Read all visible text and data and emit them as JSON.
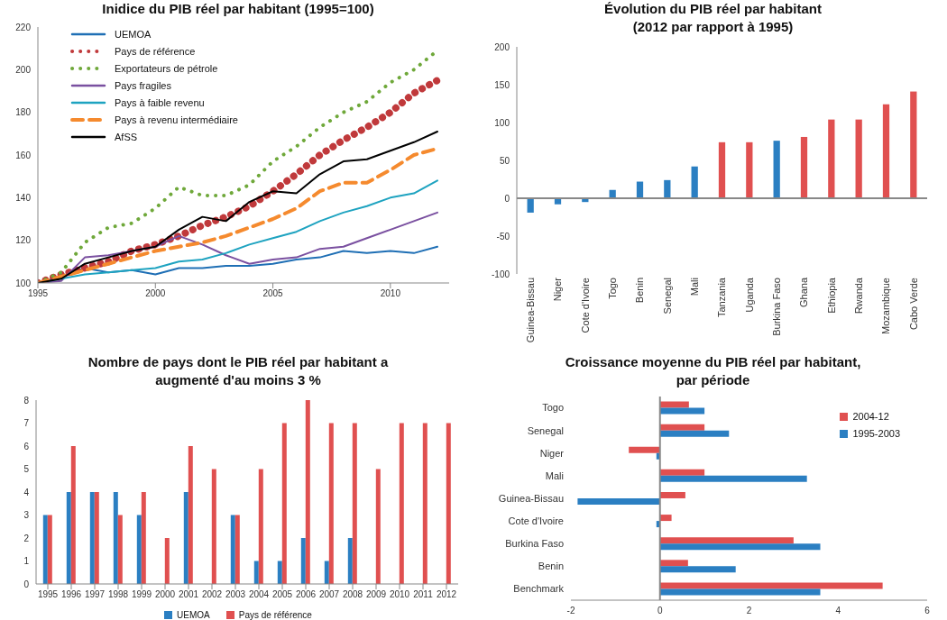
{
  "chart_data": [
    {
      "type": "line",
      "title": "Inidice du PIB réel par habitant  (1995=100)",
      "x": [
        1995,
        1996,
        1997,
        1998,
        1999,
        2000,
        2001,
        2002,
        2003,
        2004,
        2005,
        2006,
        2007,
        2008,
        2009,
        2010,
        2011,
        2012
      ],
      "xlim": [
        1995,
        2012.5
      ],
      "xticks": [
        1995,
        2000,
        2005,
        2010
      ],
      "ylim": [
        100,
        220
      ],
      "yticks": [
        100,
        120,
        140,
        160,
        180,
        200,
        220
      ],
      "grid": false,
      "legend": "top left",
      "marker": "none",
      "series": [
        {
          "name": "UEMOA",
          "color": "#1f6fb5",
          "line_style": "solid",
          "values": [
            100,
            103,
            107,
            105,
            106,
            104,
            107,
            107,
            108,
            108,
            109,
            111,
            112,
            115,
            114,
            115,
            114,
            117
          ]
        },
        {
          "name": "Pays de référence",
          "color": "#c0393b",
          "line_style": "dotted",
          "values": [
            100,
            104,
            107,
            110,
            115,
            118,
            122,
            127,
            131,
            136,
            143,
            151,
            160,
            167,
            173,
            180,
            189,
            195
          ]
        },
        {
          "name": "Exportateurs de pétrole",
          "color": "#6fa83a",
          "line_style": "dotted",
          "values": [
            100,
            105,
            119,
            126,
            128,
            135,
            145,
            141,
            141,
            146,
            157,
            164,
            173,
            180,
            185,
            194,
            200,
            209
          ]
        },
        {
          "name": "Pays fragiles",
          "color": "#7a50a0",
          "line_style": "solid",
          "values": [
            100,
            101,
            112,
            113,
            115,
            117,
            122,
            118,
            113,
            109,
            111,
            112,
            116,
            117,
            121,
            125,
            129,
            133
          ]
        },
        {
          "name": "Pays à faible revenu",
          "color": "#1ea3c0",
          "line_style": "solid",
          "values": [
            100,
            102,
            104,
            105,
            106,
            107,
            110,
            111,
            114,
            118,
            121,
            124,
            129,
            133,
            136,
            140,
            142,
            148
          ]
        },
        {
          "name": "Pays à revenu intermédiaire",
          "color": "#f58a2e",
          "line_style": "dashed",
          "values": [
            100,
            103,
            106,
            109,
            112,
            115,
            117,
            119,
            122,
            126,
            130,
            135,
            143,
            147,
            147,
            153,
            160,
            163
          ]
        },
        {
          "name": "AfSS",
          "color": "#000000",
          "line_style": "solid",
          "values": [
            100,
            102,
            109,
            112,
            115,
            117,
            125,
            131,
            129,
            138,
            143,
            142,
            151,
            157,
            158,
            162,
            166,
            171
          ]
        }
      ]
    },
    {
      "type": "bar",
      "title": "Évolution du PIB réel par habitant\n(2012 par rapport  à 1995)",
      "categories": [
        "Guinea-Bissau",
        "Niger",
        "Cote d'Ivoire",
        "Togo",
        "Benin",
        "Senegal",
        "Mali",
        "Tanzania",
        "Uganda",
        "Burkina Faso",
        "Ghana",
        "Ethiopia",
        "Rwanda",
        "Mozambique",
        "Cabo Verde"
      ],
      "values": [
        -19,
        -8,
        -5,
        11,
        22,
        24,
        42,
        74,
        74,
        76,
        81,
        104,
        104,
        124,
        141
      ],
      "colors": [
        "#2b7fc2",
        "#2b7fc2",
        "#2b7fc2",
        "#2b7fc2",
        "#2b7fc2",
        "#2b7fc2",
        "#2b7fc2",
        "#e05050",
        "#e05050",
        "#2b7fc2",
        "#e05050",
        "#e05050",
        "#e05050",
        "#e05050",
        "#e05050"
      ],
      "ylim": [
        -100,
        200
      ],
      "yticks": [
        -100,
        -50,
        0,
        50,
        100,
        150,
        200
      ],
      "grid": false,
      "legend": false,
      "ref_lines": [
        {
          "axis": "y",
          "value": 0,
          "color": "#888888"
        }
      ]
    },
    {
      "type": "bar",
      "title": "Nombre de pays dont  le PIB réel par habitant a\naugmenté d'au moins 3 %",
      "categories": [
        "1995",
        "1996",
        "1997",
        "1998",
        "1999",
        "2000",
        "2001",
        "2002",
        "2003",
        "2004",
        "2005",
        "2006",
        "2007",
        "2008",
        "2009",
        "2010",
        "2011",
        "2012"
      ],
      "ylim": [
        0,
        8
      ],
      "yticks": [
        0,
        1,
        2,
        3,
        4,
        5,
        6,
        7,
        8
      ],
      "grid": false,
      "legend": "bottom",
      "series": [
        {
          "name": "UEMOA",
          "color": "#2b7fc2",
          "values": [
            3,
            4,
            4,
            4,
            3,
            0,
            4,
            0,
            3,
            1,
            1,
            2,
            1,
            2,
            0,
            0,
            0,
            0
          ]
        },
        {
          "name": "Pays de référence",
          "color": "#e05050",
          "values": [
            3,
            6,
            4,
            3,
            4,
            2,
            6,
            5,
            3,
            5,
            7,
            8,
            7,
            7,
            5,
            7,
            7,
            7
          ]
        }
      ]
    },
    {
      "type": "bar",
      "orientation": "horizontal",
      "title": "Croissance moyenne du PIB réel par habitant,\npar période",
      "categories": [
        "Togo",
        "Senegal",
        "Niger",
        "Mali",
        "Guinea-Bissau",
        "Cote d'Ivoire",
        "Burkina Faso",
        "Benin",
        "Benchmark"
      ],
      "xlim": [
        -2,
        6
      ],
      "xticks": [
        -2,
        0,
        2,
        4,
        6
      ],
      "grid": false,
      "legend": "top right",
      "ref_lines": [
        {
          "axis": "x",
          "value": 0,
          "color": "#888888"
        }
      ],
      "series": [
        {
          "name": "2004-12",
          "color": "#e05050",
          "values": [
            0.65,
            1.0,
            -0.7,
            1.0,
            0.57,
            0.26,
            3.0,
            0.63,
            5.0
          ]
        },
        {
          "name": "1995-2003",
          "color": "#2b7fc2",
          "values": [
            1.0,
            1.55,
            -0.08,
            3.3,
            -1.85,
            -0.08,
            3.6,
            1.7,
            3.6
          ]
        }
      ]
    }
  ]
}
